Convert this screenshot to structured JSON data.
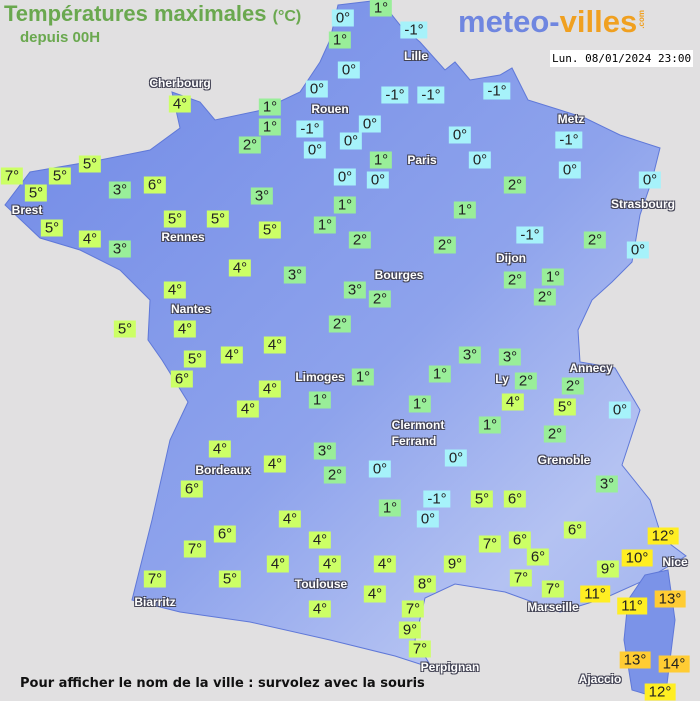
{
  "header": {
    "title": "Températures maximales",
    "unit": "(°C)",
    "subtitle": "depuis 00H",
    "logo_part1": "meteo-",
    "logo_part2": "villes",
    "logo_part3": ".com",
    "datetime": "Lun. 08/01/2024 23:00"
  },
  "footer": "Pour afficher le nom de la ville : survolez avec la souris",
  "colors": {
    "background": "#e1e0e1",
    "land": "#7b93e8",
    "below_zero": "#a6f2fa",
    "cool": "#99ee99",
    "mild": "#ccff66",
    "warm": "#ffee22",
    "hot": "#ffcc33"
  },
  "cities": [
    "Cherbourg",
    "Rouen",
    "Lille",
    "Paris",
    "Metz",
    "Strasbourg",
    "Brest",
    "Rennes",
    "Nantes",
    "Bourges",
    "Dijon",
    "Limoges",
    "Ly",
    "Annecy",
    "Clermont",
    "Ferrand",
    "Grenoble",
    "Bordeaux",
    "Toulouse",
    "Biarritz",
    "Marseille",
    "Perpignan",
    "Nice",
    "Ajaccio"
  ],
  "temperatures": [
    0,
    1,
    1,
    -1,
    0,
    0,
    1,
    1,
    -1,
    0,
    0,
    2,
    0,
    -1,
    -1,
    -1,
    0,
    -1,
    0,
    1,
    0,
    0,
    0,
    2,
    0,
    2,
    0,
    -1,
    1,
    2,
    2,
    1,
    1,
    5,
    3,
    5,
    5,
    6,
    3,
    5,
    5,
    5,
    7,
    5,
    4,
    3,
    4,
    4,
    3,
    3,
    2,
    2,
    2,
    1,
    2,
    4,
    4,
    5,
    5,
    4,
    4,
    6,
    4,
    4,
    1,
    1,
    1,
    3,
    3,
    2,
    4,
    2,
    5,
    0,
    1,
    1,
    2,
    0,
    0,
    3,
    2,
    4,
    4,
    6,
    1,
    -1,
    0,
    5,
    6,
    3,
    6,
    4,
    6,
    7,
    4,
    4,
    4,
    4,
    5,
    7,
    7,
    6,
    6,
    7,
    7,
    9,
    8,
    4,
    4,
    7,
    9,
    7,
    9,
    12,
    10,
    11,
    11,
    13,
    13,
    14,
    12
  ]
}
